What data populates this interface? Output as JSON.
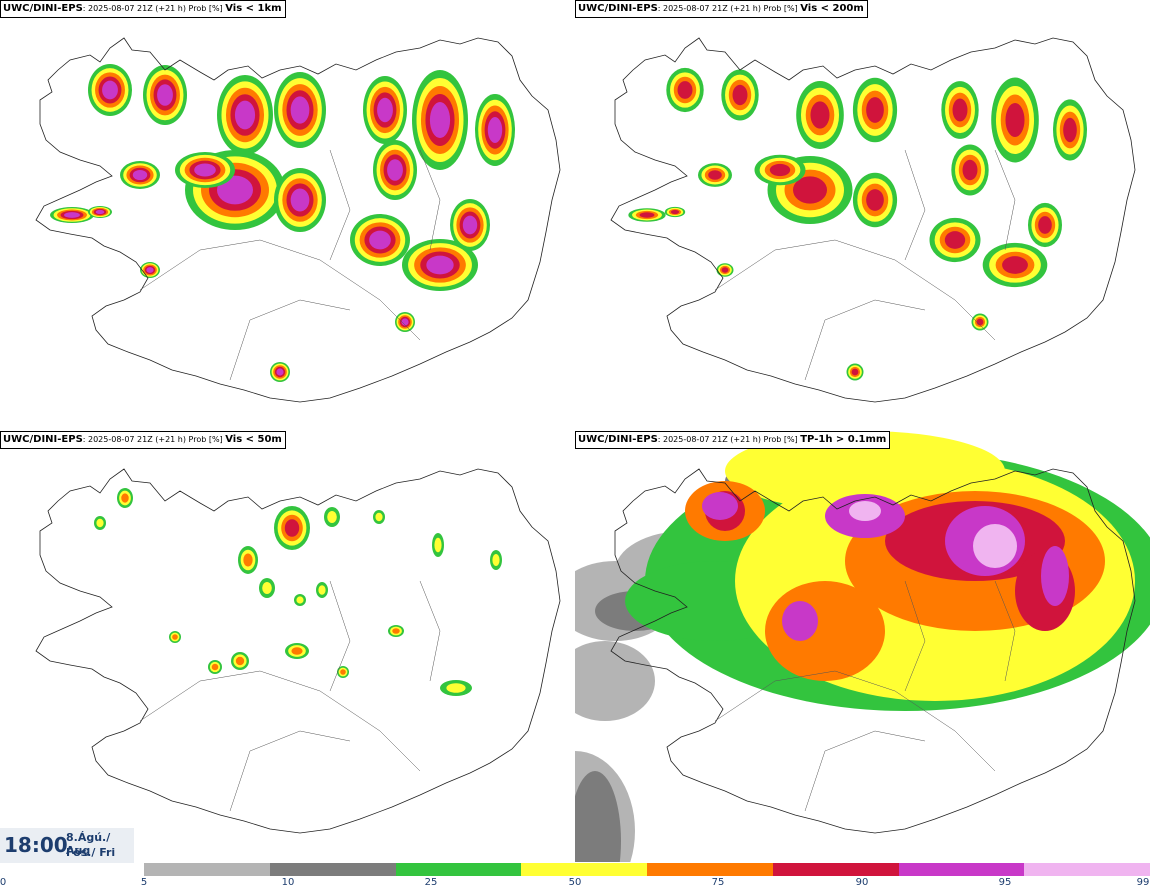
{
  "panels": [
    {
      "model": "UWC/DINI-EPS",
      "run": ": 2025-08-07 21Z (+21 h) Prob [%]",
      "variable": "Vis < 1km"
    },
    {
      "model": "UWC/DINI-EPS",
      "run": ": 2025-08-07 21Z (+21 h) Prob [%]",
      "variable": "Vis < 200m"
    },
    {
      "model": "UWC/DINI-EPS",
      "run": ": 2025-08-07 21Z (+21 h) Prob [%]",
      "variable": "Vis < 50m"
    },
    {
      "model": "UWC/DINI-EPS",
      "run": ": 2025-08-07 21Z (+21 h) Prob [%]",
      "variable": "TP-1h > 0.1mm"
    }
  ],
  "time": {
    "clock": "18:00",
    "date_line1": "8.Ágú./ Aug",
    "date_line2": "Fös./ Fri"
  },
  "legend": {
    "ticks": [
      "0",
      "5",
      "10",
      "25",
      "50",
      "75",
      "90",
      "95",
      "99"
    ],
    "colors": [
      "#b4b4b4",
      "#7c7c7c",
      "#33c43e",
      "#ffff33",
      "#ff7a00",
      "#d0143c",
      "#c838c8",
      "#f0b4f0"
    ]
  }
}
